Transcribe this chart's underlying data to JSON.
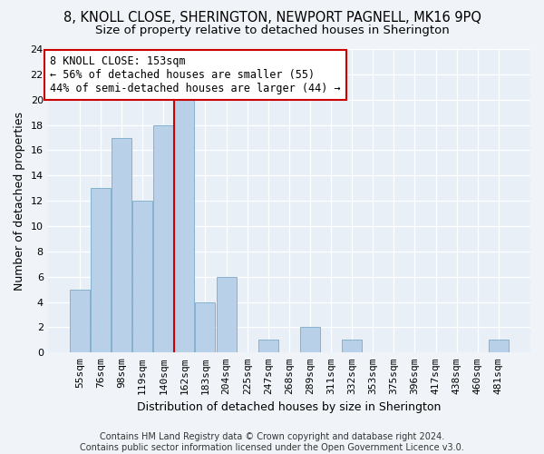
{
  "title_line1": "8, KNOLL CLOSE, SHERINGTON, NEWPORT PAGNELL, MK16 9PQ",
  "title_line2": "Size of property relative to detached houses in Sherington",
  "xlabel": "Distribution of detached houses by size in Sherington",
  "ylabel": "Number of detached properties",
  "categories": [
    "55sqm",
    "76sqm",
    "98sqm",
    "119sqm",
    "140sqm",
    "162sqm",
    "183sqm",
    "204sqm",
    "225sqm",
    "247sqm",
    "268sqm",
    "289sqm",
    "311sqm",
    "332sqm",
    "353sqm",
    "375sqm",
    "396sqm",
    "417sqm",
    "438sqm",
    "460sqm",
    "481sqm"
  ],
  "values": [
    5,
    13,
    17,
    12,
    18,
    20,
    4,
    6,
    0,
    1,
    0,
    2,
    0,
    1,
    0,
    0,
    0,
    0,
    0,
    0,
    1
  ],
  "bar_color": "#b8d0e8",
  "bar_edgecolor": "#7aaac8",
  "bar_width": 0.95,
  "vline_x_index": 5,
  "vline_color": "#cc0000",
  "annotation_text": "8 KNOLL CLOSE: 153sqm\n← 56% of detached houses are smaller (55)\n44% of semi-detached houses are larger (44) →",
  "annotation_box_color": "#ffffff",
  "annotation_box_edgecolor": "#cc0000",
  "ylim": [
    0,
    24
  ],
  "yticks": [
    0,
    2,
    4,
    6,
    8,
    10,
    12,
    14,
    16,
    18,
    20,
    22,
    24
  ],
  "footer_line1": "Contains HM Land Registry data © Crown copyright and database right 2024.",
  "footer_line2": "Contains public sector information licensed under the Open Government Licence v3.0.",
  "background_color": "#f0f4f8",
  "plot_bg_color": "#e8eff7",
  "title_fontsize": 10.5,
  "subtitle_fontsize": 9.5,
  "axis_label_fontsize": 9,
  "tick_fontsize": 8,
  "annotation_fontsize": 8.5,
  "footer_fontsize": 7
}
